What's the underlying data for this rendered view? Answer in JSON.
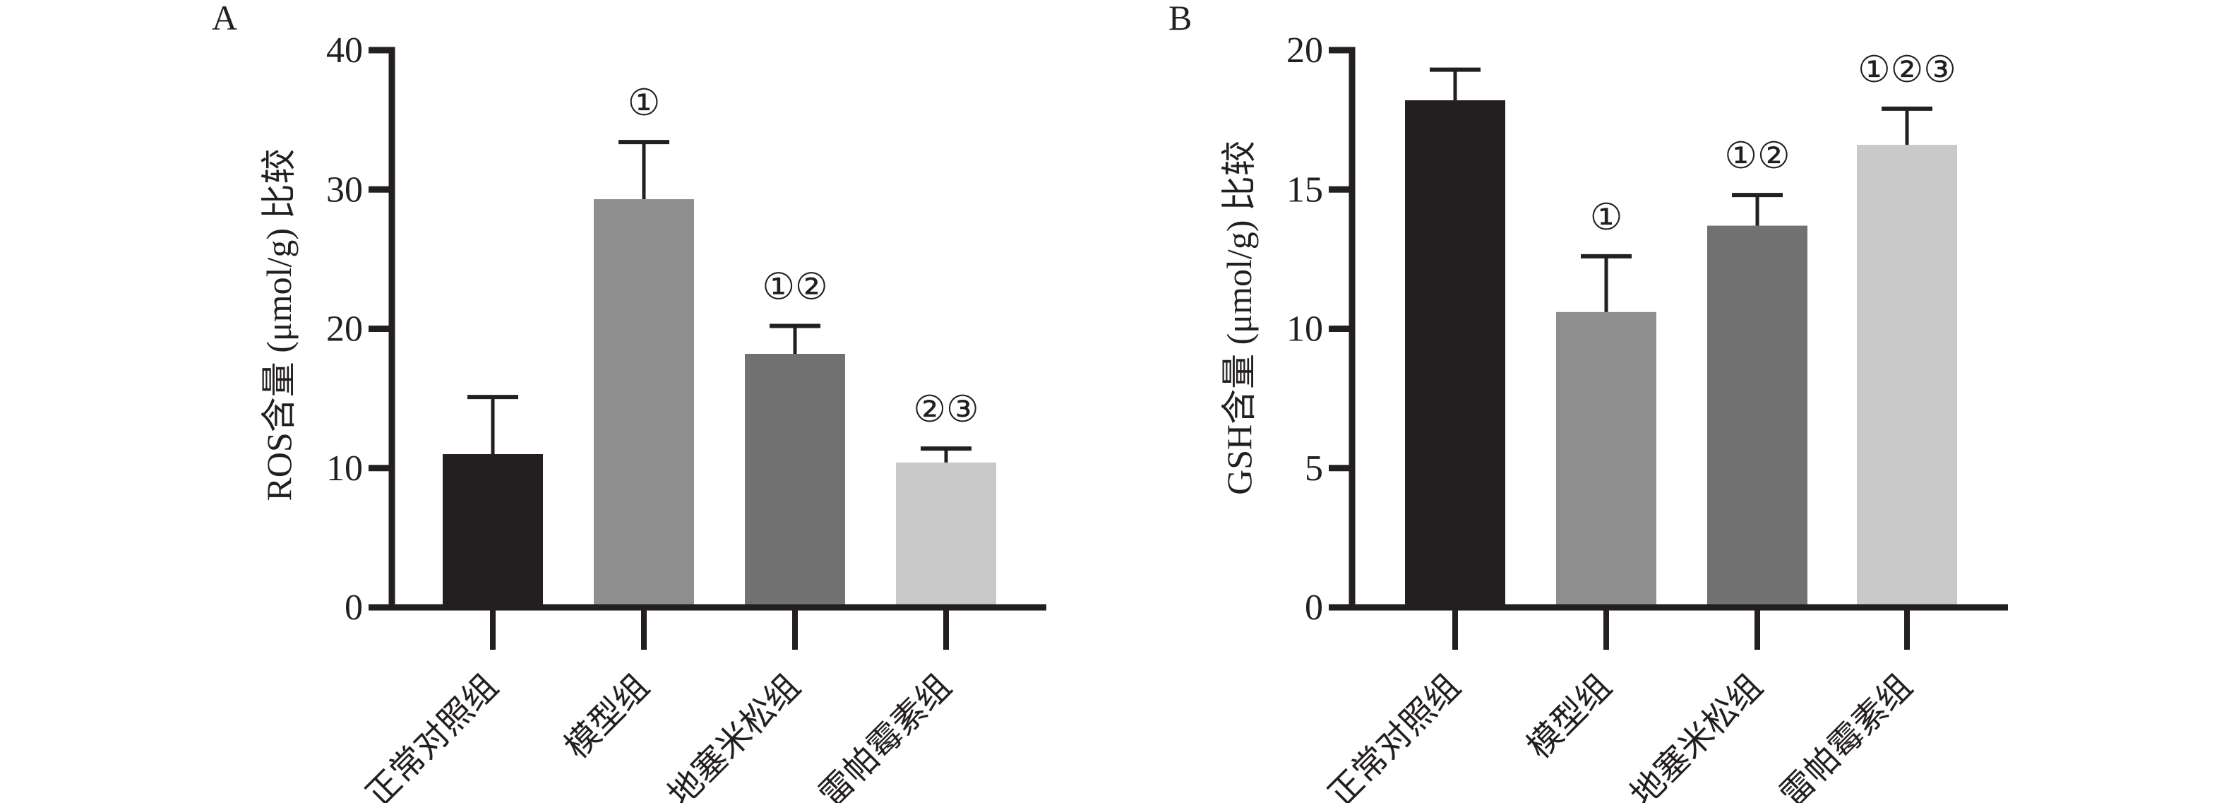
{
  "colors": {
    "axis": "#231f20",
    "bars": [
      "#231f20",
      "#8f8e8f",
      "#727172",
      "#c9c9c9"
    ],
    "background": "#ffffff"
  },
  "chart_data": [
    {
      "panel_label": "A",
      "type": "bar",
      "title": "",
      "xlabel": "",
      "ylabel": "ROS含量 (μmol/g) 比较",
      "ylim": [
        0,
        40
      ],
      "yticks": [
        0,
        10,
        20,
        30,
        40
      ],
      "ytick_labels": [
        "0",
        "10",
        "20",
        "30",
        "40"
      ],
      "categories": [
        "正常对照组",
        "模型组",
        "地塞米松组",
        "雷帕霉素组"
      ],
      "values": [
        11.0,
        29.3,
        18.2,
        10.4
      ],
      "error_upper": [
        15.1,
        33.4,
        20.2,
        11.4
      ],
      "annotations": [
        "",
        "①",
        "①②",
        "②③"
      ],
      "grid": false,
      "legend": "none"
    },
    {
      "panel_label": "B",
      "type": "bar",
      "title": "",
      "xlabel": "",
      "ylabel": "GSH含量 (μmol/g) 比较",
      "ylim": [
        0,
        20
      ],
      "yticks": [
        0,
        5,
        10,
        15,
        20
      ],
      "ytick_labels": [
        "0",
        "5",
        "10",
        "15",
        "20"
      ],
      "categories": [
        "正常对照组",
        "模型组",
        "地塞米松组",
        "雷帕霉素组"
      ],
      "values": [
        18.2,
        10.6,
        13.7,
        16.6
      ],
      "error_upper": [
        19.3,
        12.6,
        14.8,
        17.9
      ],
      "annotations": [
        "",
        "①",
        "①②",
        "①②③"
      ],
      "grid": false,
      "legend": "none"
    }
  ]
}
